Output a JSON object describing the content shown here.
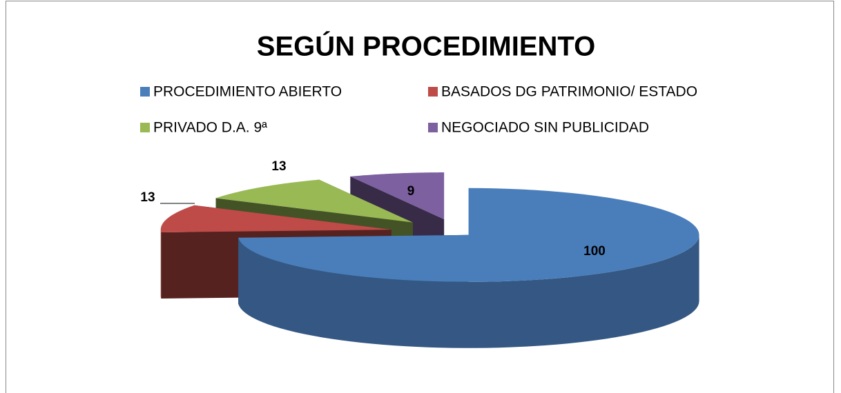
{
  "chart_data": {
    "type": "pie3d",
    "title": "SEGÚN PROCEDIMIENTO",
    "categories": [
      "PROCEDIMIENTO ABIERTO",
      "BASADOS DG PATRIMONIO/ ESTADO",
      "PRIVADO D.A. 9ª",
      "NEGOCIADO SIN PUBLICIDAD"
    ],
    "values": [
      100,
      13,
      13,
      9
    ],
    "colors": [
      "#4a7ebb",
      "#be4b48",
      "#98b954",
      "#7d60a0"
    ],
    "legend": "top"
  }
}
